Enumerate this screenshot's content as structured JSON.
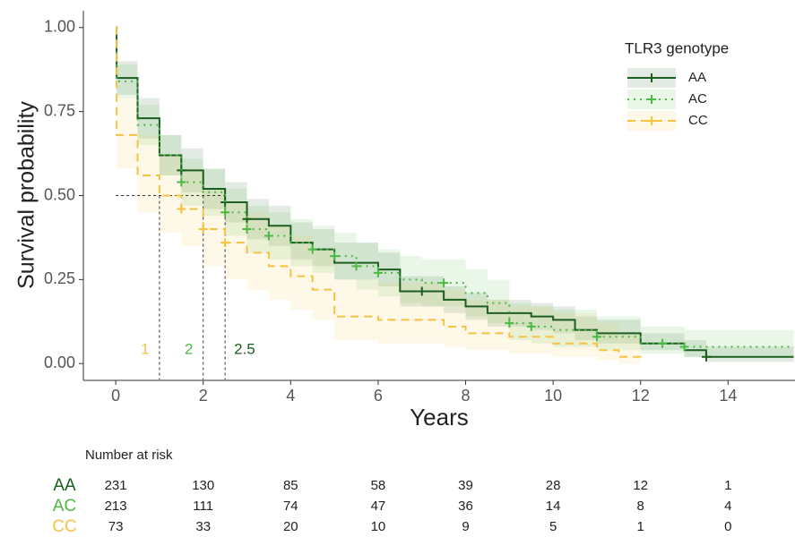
{
  "chart_data": {
    "type": "step",
    "x_label": "Years",
    "y_label": "Survival probability",
    "xlim": [
      -0.74,
      15.53
    ],
    "ylim": [
      -0.05,
      1.05
    ],
    "xticks": [
      0,
      2,
      4,
      6,
      8,
      10,
      12,
      14
    ],
    "yticks": [
      {
        "value": 0,
        "label": "0.00"
      },
      {
        "value": 0.25,
        "label": "0.25"
      },
      {
        "value": 0.5,
        "label": "0.50"
      },
      {
        "value": 0.75,
        "label": "0.75"
      },
      {
        "value": 1,
        "label": "1.00"
      }
    ],
    "grid": false,
    "legend_title": "TLR3 genotype",
    "legend_position": "top-right",
    "series": [
      {
        "name": "AA",
        "color": "#1b5e20",
        "dash": "solid",
        "x": [
          0,
          0.02,
          0.5,
          1,
          1.5,
          2,
          2.5,
          3,
          3.5,
          4,
          4.5,
          5,
          6,
          6.5,
          7.5,
          8,
          8.5,
          9.5,
          10,
          10.5,
          11,
          12,
          13,
          13.5,
          15.5
        ],
        "values": [
          1.0,
          0.85,
          0.73,
          0.62,
          0.575,
          0.52,
          0.48,
          0.43,
          0.41,
          0.36,
          0.34,
          0.3,
          0.28,
          0.215,
          0.19,
          0.17,
          0.15,
          0.14,
          0.13,
          0.1,
          0.09,
          0.06,
          0.04,
          0.02,
          0.02
        ],
        "lower": [
          1.0,
          0.8,
          0.67,
          0.56,
          0.51,
          0.46,
          0.42,
          0.37,
          0.35,
          0.31,
          0.29,
          0.25,
          0.23,
          0.17,
          0.15,
          0.13,
          0.11,
          0.1,
          0.09,
          0.07,
          0.06,
          0.04,
          0.02,
          0.005,
          0.005
        ],
        "upper": [
          1.0,
          0.9,
          0.79,
          0.68,
          0.64,
          0.58,
          0.54,
          0.49,
          0.47,
          0.42,
          0.4,
          0.36,
          0.33,
          0.26,
          0.23,
          0.21,
          0.19,
          0.18,
          0.17,
          0.14,
          0.13,
          0.09,
          0.07,
          0.05,
          0.05
        ],
        "censor_x": [
          1.5,
          2.5,
          3,
          7,
          13.5
        ],
        "censor_values": [
          0.575,
          0.48,
          0.43,
          0.215,
          0.02
        ]
      },
      {
        "name": "AC",
        "color": "#4cb944",
        "dash": "dotted",
        "x": [
          0,
          0.02,
          0.5,
          1,
          1.5,
          2,
          2.5,
          3,
          3.5,
          4,
          4.5,
          5,
          5.5,
          6,
          6.5,
          7,
          8,
          8.5,
          9,
          9.5,
          10,
          11,
          12,
          13,
          15.5
        ],
        "values": [
          1.0,
          0.84,
          0.71,
          0.62,
          0.54,
          0.51,
          0.45,
          0.4,
          0.38,
          0.36,
          0.34,
          0.32,
          0.29,
          0.27,
          0.25,
          0.24,
          0.21,
          0.18,
          0.12,
          0.11,
          0.1,
          0.08,
          0.06,
          0.05,
          0.05
        ],
        "lower": [
          1.0,
          0.79,
          0.65,
          0.56,
          0.47,
          0.44,
          0.38,
          0.33,
          0.31,
          0.29,
          0.27,
          0.25,
          0.22,
          0.2,
          0.18,
          0.17,
          0.14,
          0.12,
          0.07,
          0.06,
          0.05,
          0.04,
          0.03,
          0.02,
          0.02
        ],
        "upper": [
          1.0,
          0.89,
          0.77,
          0.68,
          0.61,
          0.58,
          0.52,
          0.47,
          0.45,
          0.43,
          0.41,
          0.39,
          0.36,
          0.34,
          0.32,
          0.31,
          0.28,
          0.25,
          0.18,
          0.17,
          0.16,
          0.14,
          0.11,
          0.1,
          0.1
        ],
        "censor_x": [
          1.5,
          2.5,
          3,
          3.5,
          4.5,
          5,
          5.5,
          6,
          7.5,
          9,
          9.5,
          11,
          12.5,
          13
        ],
        "censor_values": [
          0.54,
          0.45,
          0.4,
          0.38,
          0.34,
          0.32,
          0.29,
          0.27,
          0.24,
          0.12,
          0.11,
          0.08,
          0.06,
          0.05
        ]
      },
      {
        "name": "CC",
        "color": "#f5c242",
        "dash": "dashed",
        "x": [
          0,
          0.02,
          0.5,
          1,
          1.5,
          2,
          2.5,
          3,
          3.5,
          4,
          4.5,
          5,
          6,
          7.5,
          8,
          9,
          10,
          11,
          11.5,
          12
        ],
        "values": [
          1.0,
          0.68,
          0.56,
          0.5,
          0.46,
          0.4,
          0.36,
          0.33,
          0.29,
          0.26,
          0.22,
          0.14,
          0.13,
          0.11,
          0.09,
          0.08,
          0.06,
          0.04,
          0.02,
          0.01
        ],
        "lower": [
          1.0,
          0.58,
          0.45,
          0.39,
          0.35,
          0.29,
          0.25,
          0.22,
          0.19,
          0.16,
          0.13,
          0.07,
          0.06,
          0.05,
          0.04,
          0.03,
          0.02,
          0.01,
          0.0,
          0.0
        ],
        "upper": [
          1.0,
          0.79,
          0.68,
          0.62,
          0.58,
          0.52,
          0.48,
          0.45,
          0.41,
          0.38,
          0.34,
          0.25,
          0.24,
          0.22,
          0.19,
          0.17,
          0.15,
          0.12,
          0.09,
          0.07
        ],
        "censor_x": [
          1.5,
          2,
          2.5
        ],
        "censor_values": [
          0.46,
          0.4,
          0.36
        ]
      }
    ],
    "median_y": 0.5,
    "medians": [
      {
        "x": 1,
        "color": "#f5c242"
      },
      {
        "x": 2,
        "color": "#4cb944"
      },
      {
        "x": 2.5,
        "color": "#1b5e20"
      }
    ],
    "risk_table": {
      "title": "Number at risk",
      "times": [
        0,
        2,
        4,
        6,
        8,
        10,
        12,
        14
      ],
      "groups": [
        {
          "name": "AA",
          "counts": [
            231,
            130,
            85,
            58,
            39,
            28,
            12,
            1
          ]
        },
        {
          "name": "AC",
          "counts": [
            213,
            111,
            74,
            47,
            36,
            14,
            8,
            4
          ]
        },
        {
          "name": "CC",
          "counts": [
            73,
            33,
            20,
            10,
            9,
            5,
            1,
            0
          ]
        }
      ]
    }
  }
}
